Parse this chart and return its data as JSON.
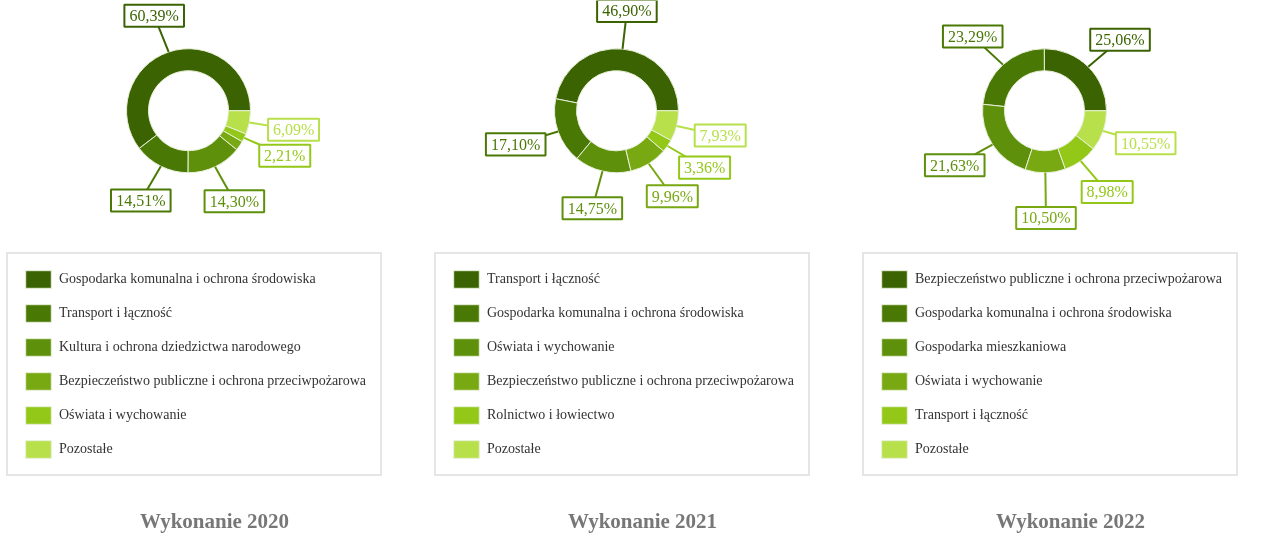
{
  "chart_data": [
    {
      "type": "donut",
      "title": "Wykonanie 2020",
      "legend": "bottom",
      "categories": [
        "Gospodarka komunalna i ochrona środowiska",
        "Transport i łączność",
        "Kultura i ochrona dziedzictwa narodowego",
        "Bezpieczeństwo publiczne i ochrona przeciwpożarowa",
        "Oświata i wychowanie",
        "Pozostałe"
      ],
      "values": [
        60.39,
        14.51,
        14.3,
        2.5,
        2.21,
        6.09
      ],
      "value_labels": [
        "60,39%",
        "14,51%",
        "14,30%",
        null,
        "2,21%",
        "6,09%"
      ],
      "colors": [
        "#3b6302",
        "#4a7805",
        "#5e900c",
        "#78a812",
        "#93c818",
        "#b8e04a"
      ]
    },
    {
      "type": "donut",
      "title": "Wykonanie 2021",
      "legend": "bottom",
      "value_labels": [
        "46,90%",
        "17,10%",
        "14,75%",
        "9,96%",
        "3,36%",
        "7,93%"
      ],
      "categories": [
        "Transport i łączność",
        "Gospodarka komunalna i ochrona środowiska",
        "Oświata i wychowanie",
        "Bezpieczeństwo publiczne i ochrona przeciwpożarowa",
        "Rolnictwo i łowiectwo",
        "Pozostałe"
      ],
      "values": [
        46.9,
        17.1,
        14.75,
        9.96,
        3.36,
        7.93
      ],
      "colors": [
        "#3b6302",
        "#4a7805",
        "#5e900c",
        "#78a812",
        "#93c818",
        "#b8e04a"
      ]
    },
    {
      "type": "donut",
      "title": "Wykonanie 2022",
      "legend": "bottom",
      "value_labels": [
        "25,06%",
        "23,29%",
        "21,63%",
        "10,50%",
        "8,98%",
        "10,55%"
      ],
      "categories": [
        "Bezpieczeństwo publiczne i ochrona przeciwpożarowa",
        "Gospodarka komunalna i ochrona środowiska",
        "Gospodarka mieszkaniowa",
        "Oświata i wychowanie",
        "Transport i łączność",
        "Pozostałe"
      ],
      "values": [
        25.06,
        23.29,
        21.63,
        10.5,
        8.98,
        10.55
      ],
      "colors": [
        "#3b6302",
        "#4a7805",
        "#5e900c",
        "#78a812",
        "#93c818",
        "#b8e04a"
      ]
    }
  ]
}
